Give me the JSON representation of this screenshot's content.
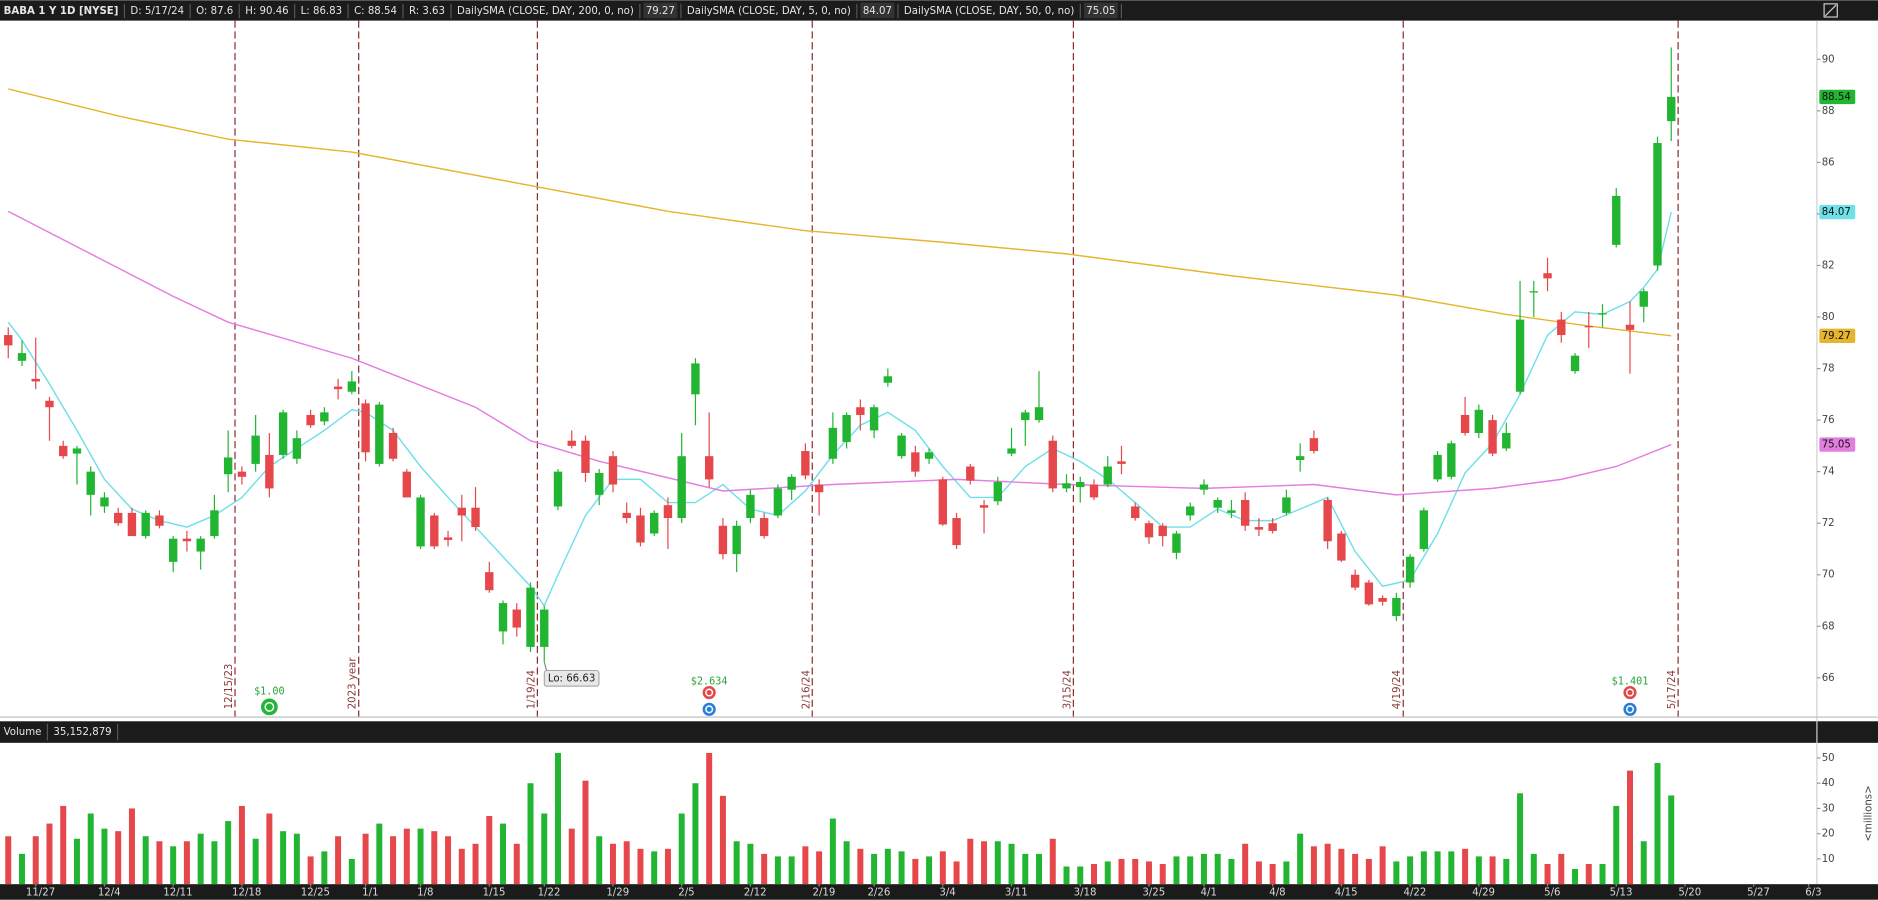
{
  "chart_data": [
    {
      "type": "candlestick",
      "title": "BABA 1 Y 1D [NYSE]",
      "readout": [
        "D: 5/17/24",
        "O: 87.6",
        "H: 90.46",
        "L: 86.83",
        "C: 88.54",
        "R: 3.63"
      ],
      "up_color": "#21b532",
      "down_color": "#e5474b",
      "xlim": [
        -0.6,
        131.6
      ],
      "ylim": [
        64.5,
        91.5
      ],
      "yticks": [
        66,
        68,
        70,
        72,
        74,
        76,
        78,
        80,
        82,
        84,
        86,
        88,
        90
      ],
      "open": [
        79.3,
        78.3,
        77.6,
        76.75,
        75.0,
        74.7,
        73.1,
        72.65,
        72.4,
        72.4,
        71.5,
        72.3,
        70.5,
        71.4,
        70.9,
        71.5,
        73.9,
        74.0,
        74.3,
        74.65,
        74.65,
        74.5,
        76.2,
        75.95,
        77.3,
        77.1,
        76.65,
        74.3,
        75.5,
        74.0,
        71.1,
        72.3,
        71.45,
        72.6,
        72.6,
        70.1,
        67.8,
        68.65,
        67.2,
        67.2,
        72.65,
        75.2,
        75.2,
        73.1,
        74.6,
        72.4,
        72.3,
        71.6,
        72.7,
        72.2,
        77.0,
        74.6,
        71.9,
        70.8,
        72.2,
        72.2,
        72.3,
        73.3,
        74.8,
        73.5,
        74.5,
        75.15,
        76.5,
        75.6,
        77.45,
        74.6,
        74.75,
        74.5,
        73.7,
        72.2,
        74.2,
        72.7,
        72.85,
        74.7,
        76.0,
        76.0,
        75.2,
        73.35,
        73.4,
        73.5,
        73.5,
        74.4,
        72.65,
        72.0,
        71.9,
        70.85,
        72.3,
        73.3,
        72.6,
        72.4,
        72.9,
        71.85,
        72.0,
        72.4,
        74.45,
        75.3,
        72.9,
        71.6,
        70.0,
        69.7,
        69.1,
        68.4,
        69.7,
        71.0,
        73.7,
        73.8,
        76.2,
        75.5,
        76.0,
        74.9,
        77.1,
        80.95,
        81.7,
        79.9,
        77.9,
        79.65,
        80.1,
        82.8,
        79.7,
        80.4,
        82.0,
        87.6
      ],
      "high": [
        79.6,
        79.1,
        79.2,
        76.9,
        75.2,
        75.0,
        74.2,
        73.2,
        72.6,
        72.6,
        72.5,
        72.5,
        71.5,
        71.7,
        71.5,
        73.1,
        75.6,
        74.2,
        76.2,
        75.5,
        76.4,
        75.6,
        76.4,
        76.5,
        77.6,
        77.9,
        76.8,
        76.7,
        75.7,
        74.1,
        73.1,
        72.4,
        71.7,
        73.1,
        73.4,
        70.5,
        69.0,
        68.9,
        69.7,
        68.8,
        74.1,
        75.6,
        75.4,
        74.1,
        74.8,
        72.8,
        72.6,
        72.5,
        73.0,
        75.5,
        78.4,
        76.3,
        72.2,
        72.1,
        73.3,
        72.4,
        73.5,
        73.9,
        75.1,
        73.7,
        76.3,
        76.3,
        76.8,
        76.6,
        78.0,
        75.5,
        75.0,
        74.9,
        73.8,
        72.4,
        74.3,
        72.9,
        73.8,
        75.7,
        76.4,
        77.9,
        75.4,
        73.9,
        73.8,
        73.7,
        74.6,
        75.0,
        72.8,
        72.1,
        72.0,
        71.7,
        72.8,
        73.7,
        73.0,
        72.9,
        73.2,
        72.2,
        72.2,
        73.3,
        75.1,
        75.6,
        73.0,
        71.7,
        70.2,
        69.8,
        69.2,
        69.3,
        70.8,
        72.6,
        74.8,
        75.2,
        76.9,
        76.6,
        76.2,
        75.9,
        81.4,
        81.4,
        82.3,
        80.2,
        78.6,
        80.2,
        80.5,
        85.0,
        80.6,
        81.1,
        87.0,
        90.46
      ],
      "low": [
        78.4,
        78.1,
        77.2,
        75.2,
        74.5,
        73.5,
        72.3,
        72.4,
        71.9,
        71.5,
        71.4,
        71.8,
        70.1,
        70.9,
        70.2,
        71.4,
        73.2,
        73.5,
        74.0,
        73.0,
        74.5,
        74.3,
        75.7,
        75.8,
        76.8,
        77.0,
        74.4,
        74.2,
        74.4,
        73.0,
        71.0,
        71.0,
        71.1,
        71.3,
        71.7,
        69.3,
        67.3,
        67.6,
        67.0,
        66.63,
        72.5,
        74.9,
        73.6,
        72.7,
        73.2,
        72.0,
        71.1,
        71.5,
        71.0,
        72.0,
        75.8,
        73.4,
        70.6,
        70.1,
        72.0,
        71.4,
        72.2,
        72.9,
        73.7,
        72.3,
        74.3,
        74.9,
        75.6,
        75.3,
        77.3,
        74.5,
        73.8,
        74.3,
        71.9,
        71.0,
        73.5,
        71.6,
        72.7,
        74.6,
        75.0,
        75.9,
        73.2,
        73.2,
        72.8,
        72.9,
        73.4,
        73.9,
        72.1,
        71.2,
        71.1,
        70.6,
        72.1,
        73.1,
        72.4,
        72.2,
        71.7,
        71.5,
        71.6,
        72.3,
        74.0,
        74.7,
        71.0,
        70.5,
        69.4,
        68.8,
        68.8,
        68.2,
        69.5,
        70.9,
        73.6,
        73.7,
        75.4,
        75.3,
        74.6,
        74.8,
        77.0,
        80.0,
        81.0,
        79.0,
        77.8,
        78.8,
        79.6,
        82.7,
        77.8,
        79.8,
        81.8,
        86.83
      ],
      "close": [
        78.9,
        78.6,
        77.5,
        76.5,
        74.6,
        74.9,
        74.0,
        73.0,
        72.0,
        71.5,
        72.4,
        71.9,
        71.4,
        71.3,
        71.4,
        72.5,
        74.55,
        73.8,
        75.4,
        73.35,
        76.3,
        75.3,
        75.8,
        76.3,
        77.2,
        77.5,
        74.75,
        76.6,
        74.5,
        73.0,
        73.0,
        71.1,
        71.35,
        72.3,
        71.85,
        69.4,
        68.9,
        67.95,
        69.5,
        68.65,
        74.0,
        75.0,
        73.95,
        73.95,
        73.5,
        72.2,
        71.25,
        72.4,
        72.2,
        74.6,
        78.2,
        73.7,
        70.8,
        71.9,
        73.1,
        71.5,
        73.35,
        73.8,
        73.85,
        73.2,
        75.7,
        76.2,
        76.2,
        76.5,
        77.7,
        75.4,
        74.0,
        74.75,
        71.95,
        71.15,
        73.65,
        72.6,
        73.6,
        74.9,
        76.3,
        76.5,
        73.35,
        73.55,
        73.6,
        73.0,
        74.2,
        74.3,
        72.2,
        71.45,
        71.5,
        71.6,
        72.65,
        73.5,
        72.9,
        72.5,
        71.9,
        71.75,
        71.7,
        73.0,
        74.6,
        74.8,
        71.3,
        70.55,
        69.5,
        68.85,
        68.95,
        69.1,
        70.7,
        72.5,
        74.65,
        75.1,
        75.5,
        76.4,
        74.7,
        75.5,
        79.9,
        81.0,
        81.5,
        79.3,
        78.5,
        79.6,
        80.15,
        84.7,
        79.5,
        81.0,
        86.75,
        88.54
      ],
      "overlays": [
        {
          "name": "DailySMA (CLOSE, DAY, 200, 0, no)",
          "color": "#e6b52e",
          "x": [
            0,
            8,
            16,
            25,
            38,
            48,
            58,
            68,
            77,
            89,
            101,
            109,
            115,
            121
          ],
          "values": [
            88.85,
            87.8,
            86.9,
            86.4,
            85.1,
            84.1,
            83.35,
            82.9,
            82.45,
            81.6,
            80.85,
            80.1,
            79.65,
            79.27
          ]
        },
        {
          "name": "DailySMA (CLOSE, DAY, 5, 0, no)",
          "color": "#6fe0e8",
          "x": [
            0,
            1,
            3,
            5,
            7,
            9,
            11,
            13,
            15,
            17,
            19,
            21,
            23,
            25,
            26,
            28,
            30,
            32,
            34,
            36,
            38,
            39,
            40,
            42,
            44,
            46,
            48,
            50,
            52,
            54,
            56,
            58,
            60,
            62,
            64,
            66,
            68,
            70,
            72,
            74,
            76,
            78,
            80,
            82,
            84,
            86,
            88,
            90,
            92,
            94,
            96,
            98,
            100,
            102,
            104,
            106,
            108,
            110,
            112,
            114,
            116,
            118,
            119,
            120,
            121
          ],
          "values": [
            79.8,
            79.1,
            77.4,
            75.6,
            73.7,
            72.55,
            72.1,
            71.85,
            72.3,
            73.0,
            74.2,
            74.9,
            75.6,
            76.4,
            76.3,
            75.6,
            74.2,
            73.0,
            71.85,
            70.7,
            69.55,
            68.8,
            70.0,
            72.3,
            73.7,
            73.7,
            72.8,
            72.8,
            73.5,
            72.55,
            72.3,
            73.25,
            74.65,
            75.8,
            76.3,
            75.6,
            74.2,
            73.0,
            73.0,
            74.2,
            74.9,
            74.4,
            73.7,
            72.8,
            71.85,
            71.85,
            72.55,
            72.1,
            72.1,
            72.55,
            73.0,
            70.9,
            69.55,
            69.8,
            71.6,
            73.95,
            75.1,
            77.0,
            79.3,
            80.2,
            80.1,
            80.6,
            81.15,
            81.85,
            84.07
          ]
        },
        {
          "name": "DailySMA (CLOSE, DAY, 50, 0, no)",
          "color": "#e47de0",
          "x": [
            0,
            8,
            12,
            16,
            25,
            34,
            38,
            43,
            52,
            60,
            69,
            77,
            87,
            95,
            101,
            108,
            113,
            117,
            121
          ],
          "values": [
            84.1,
            81.9,
            80.8,
            79.8,
            78.4,
            76.5,
            75.2,
            74.4,
            73.25,
            73.5,
            73.7,
            73.5,
            73.35,
            73.5,
            73.1,
            73.35,
            73.7,
            74.2,
            75.05
          ]
        }
      ],
      "markers": [
        {
          "x": 16.5,
          "label": "12/15/23"
        },
        {
          "x": 25.5,
          "label": "2023 year"
        },
        {
          "x": 38.5,
          "label": "1/19/24"
        },
        {
          "x": 58.5,
          "label": "2/16/24"
        },
        {
          "x": 77.5,
          "label": "3/15/24"
        },
        {
          "x": 101.5,
          "label": "4/19/24"
        },
        {
          "x": 121.5,
          "label": "5/17/24"
        }
      ],
      "events": [
        {
          "x": 19,
          "label": "$1.00"
        },
        {
          "x": 51,
          "label": "$2.634"
        },
        {
          "x": 118,
          "label": "$1.401"
        }
      ],
      "annotation": {
        "x": 39,
        "label": "Lo: 66.63"
      }
    },
    {
      "type": "bar",
      "title": "Volume",
      "readout": "35,152,879",
      "axis_label": "<millions>",
      "xlim": [
        -0.6,
        131.6
      ],
      "ylim": [
        0,
        56
      ],
      "yticks": [
        10,
        20,
        30,
        40,
        50
      ],
      "xticks": [
        {
          "value": 2,
          "label": "11/27"
        },
        {
          "value": 7,
          "label": "12/4"
        },
        {
          "value": 12,
          "label": "12/11"
        },
        {
          "value": 17,
          "label": "12/18"
        },
        {
          "value": 22,
          "label": "12/25"
        },
        {
          "value": 26,
          "label": "1/1"
        },
        {
          "value": 30,
          "label": "1/8"
        },
        {
          "value": 35,
          "label": "1/15"
        },
        {
          "value": 39,
          "label": "1/22"
        },
        {
          "value": 44,
          "label": "1/29"
        },
        {
          "value": 49,
          "label": "2/5"
        },
        {
          "value": 54,
          "label": "2/12"
        },
        {
          "value": 59,
          "label": "2/19"
        },
        {
          "value": 63,
          "label": "2/26"
        },
        {
          "value": 68,
          "label": "3/4"
        },
        {
          "value": 73,
          "label": "3/11"
        },
        {
          "value": 78,
          "label": "3/18"
        },
        {
          "value": 83,
          "label": "3/25"
        },
        {
          "value": 87,
          "label": "4/1"
        },
        {
          "value": 92,
          "label": "4/8"
        },
        {
          "value": 97,
          "label": "4/15"
        },
        {
          "value": 102,
          "label": "4/22"
        },
        {
          "value": 107,
          "label": "4/29"
        },
        {
          "value": 112,
          "label": "5/6"
        },
        {
          "value": 117,
          "label": "5/13"
        },
        {
          "value": 122,
          "label": "5/20"
        },
        {
          "value": 127,
          "label": "5/27"
        },
        {
          "value": 131,
          "label": "6/3"
        }
      ],
      "values": [
        19,
        12,
        19,
        24,
        31,
        18,
        28,
        22,
        21,
        30,
        19,
        17,
        15,
        17,
        20,
        17,
        25,
        31,
        18,
        28,
        21,
        20,
        11,
        13,
        19,
        10,
        20,
        24,
        19,
        22,
        22,
        21,
        19,
        14,
        16,
        27,
        24,
        16,
        40,
        28,
        52,
        22,
        41,
        19,
        16,
        17,
        14,
        13,
        14,
        28,
        40,
        52,
        35,
        17,
        16,
        12,
        11,
        11,
        15,
        13,
        26,
        17,
        14,
        12,
        14,
        13,
        10,
        11,
        13,
        9,
        18,
        17,
        17,
        16,
        12,
        12,
        18,
        7,
        7,
        8,
        9,
        10,
        10,
        9,
        8,
        11,
        11,
        12,
        12,
        10,
        16,
        9,
        8,
        9,
        20,
        15,
        16,
        14,
        12,
        10,
        15,
        9,
        11,
        13,
        13,
        13,
        14,
        11,
        11,
        10,
        36,
        12,
        8,
        12,
        6,
        8,
        8,
        31,
        45,
        17,
        48,
        35.152879
      ]
    }
  ]
}
